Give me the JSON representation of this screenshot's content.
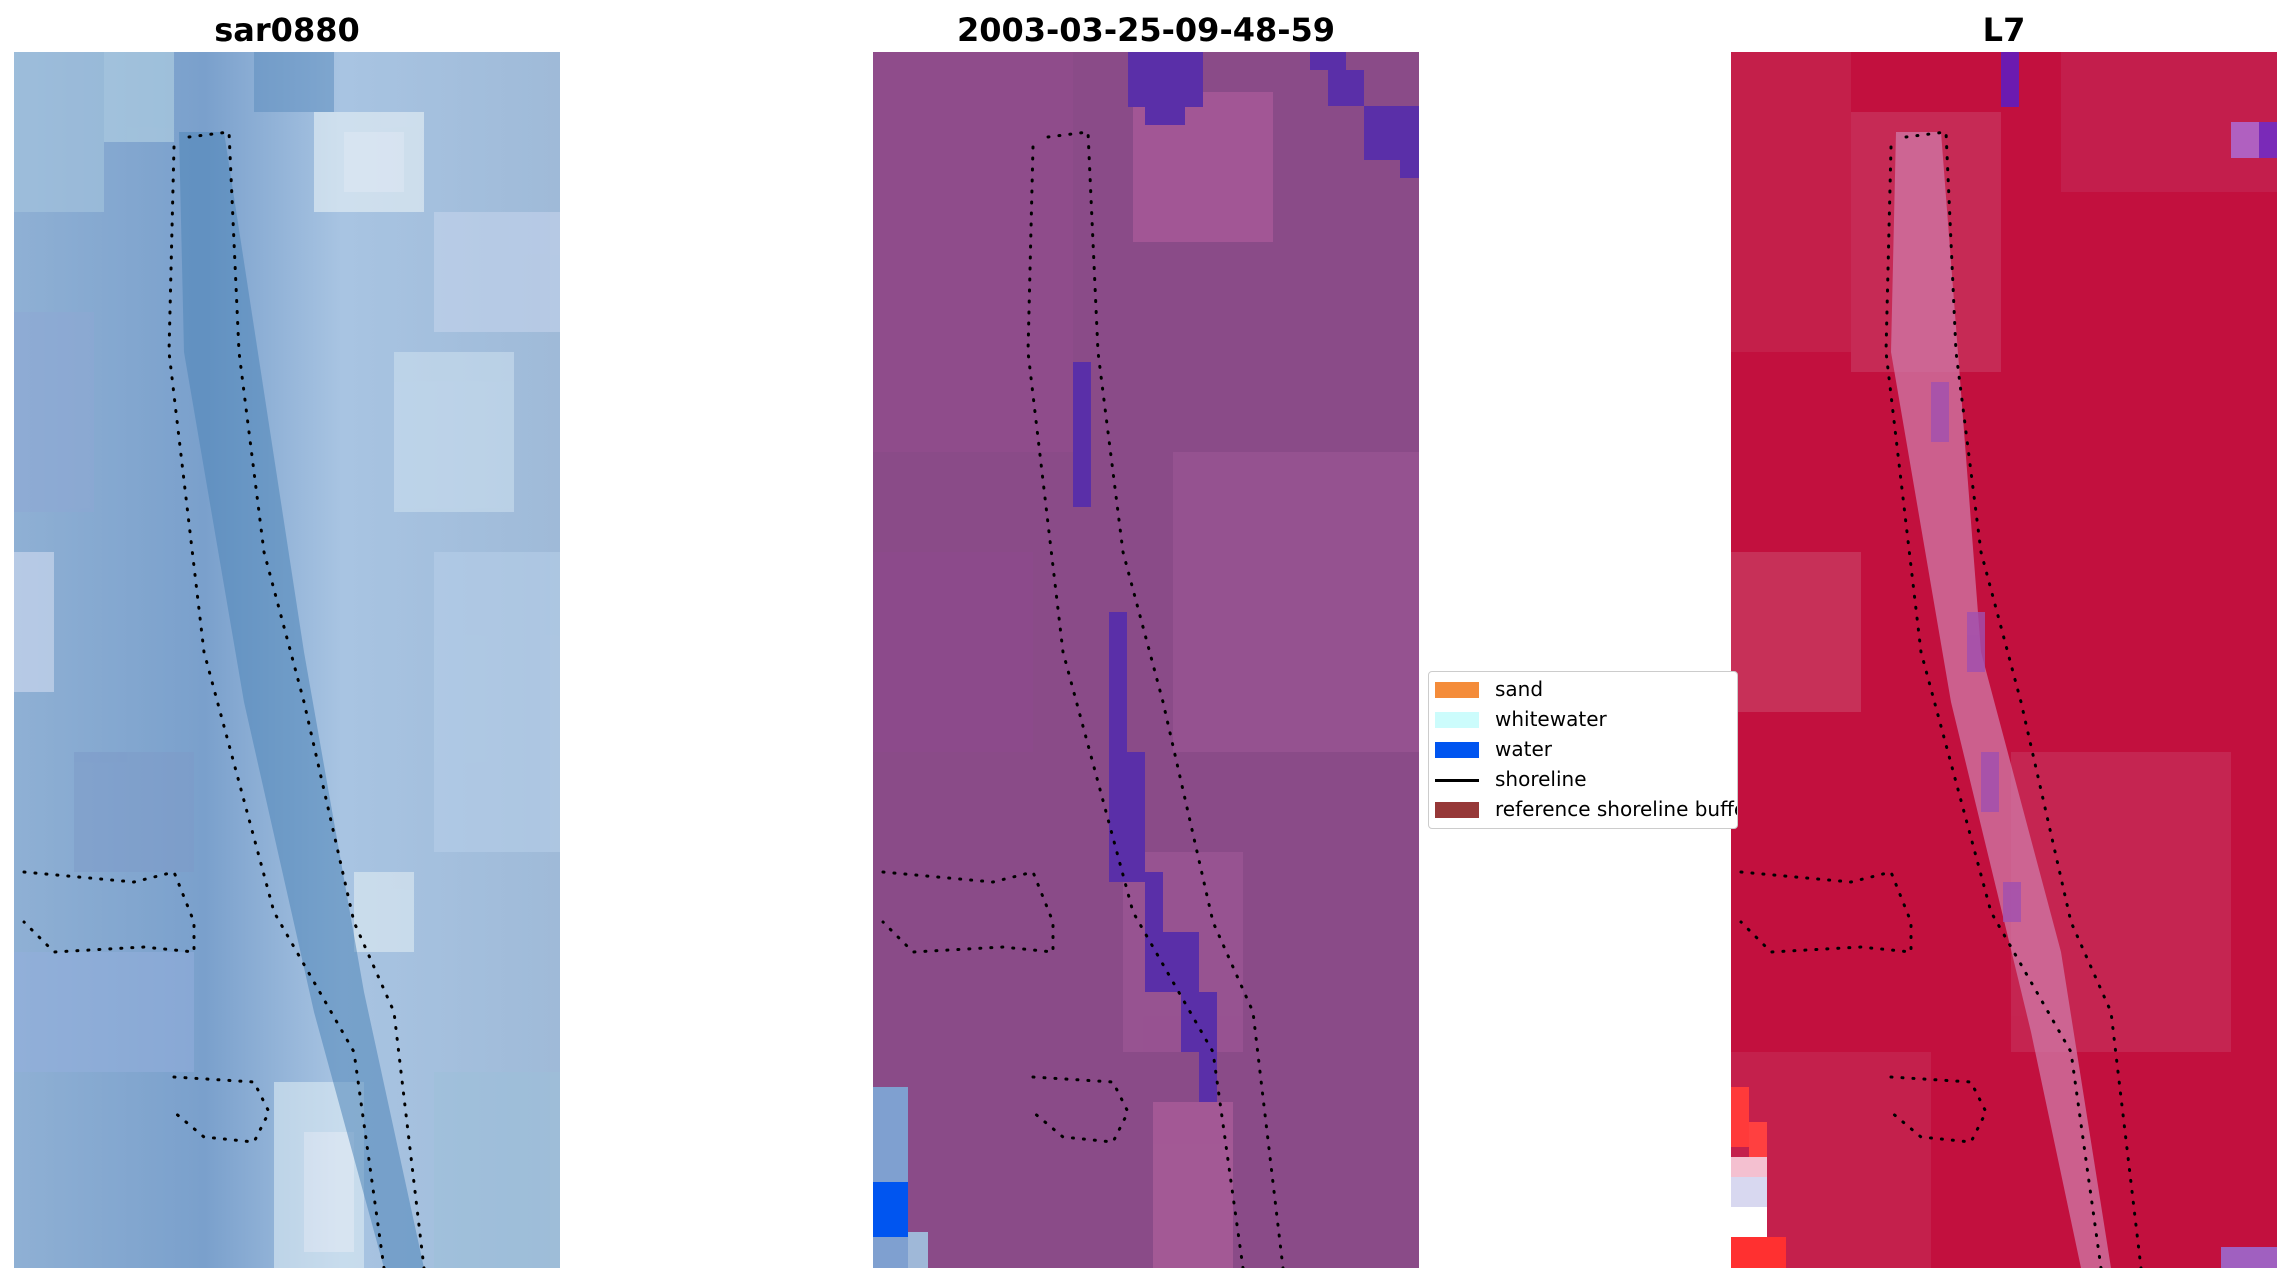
{
  "panels": [
    {
      "title": "sar0880",
      "palette": "rgb-natural"
    },
    {
      "title": "2003-03-25-09-48-59",
      "palette": "classified"
    },
    {
      "title": "L7",
      "palette": "index"
    }
  ],
  "legend": {
    "items": [
      {
        "label": "sand",
        "color": "#f48c3a",
        "kind": "patch"
      },
      {
        "label": "whitewater",
        "color": "#ccfcfc",
        "kind": "patch"
      },
      {
        "label": "water",
        "color": "#0055f0",
        "kind": "patch"
      },
      {
        "label": "shoreline",
        "color": "#000000",
        "kind": "line"
      },
      {
        "label": "reference shoreline buffer",
        "color": "#963838",
        "kind": "patch"
      }
    ]
  }
}
